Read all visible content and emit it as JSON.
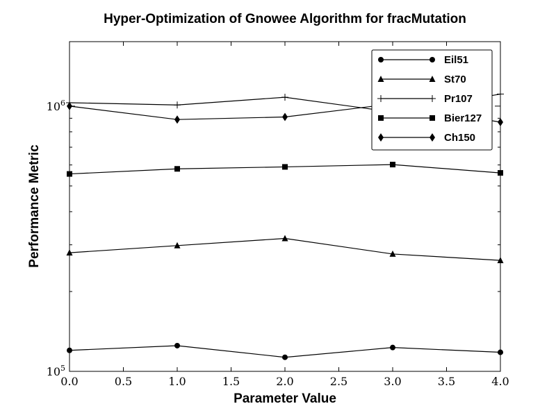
{
  "chart_data": {
    "type": "line",
    "title": "Hyper-Optimization of Gnowee Algorithm for fracMutation",
    "xlabel": "Parameter Value",
    "ylabel": "Performance Metric",
    "x": [
      0.0,
      1.0,
      2.0,
      3.0,
      4.0
    ],
    "xlim": [
      0.0,
      4.0
    ],
    "xticks": [
      0.0,
      0.5,
      1.0,
      1.5,
      2.0,
      2.5,
      3.0,
      3.5,
      4.0
    ],
    "xtick_labels": [
      "0.0",
      "0.5",
      "1.0",
      "1.5",
      "2.0",
      "2.5",
      "3.0",
      "3.5",
      "4.0"
    ],
    "yscale": "log",
    "ylim": [
      100000,
      1750000
    ],
    "yticks": [
      100000,
      1000000
    ],
    "ytick_labels": [
      {
        "base": "10",
        "exp": "5"
      },
      {
        "base": "10",
        "exp": "6"
      }
    ],
    "grid": false,
    "legend_position": "top-right",
    "series": [
      {
        "name": "Eil51",
        "marker": "circle",
        "values": [
          120000,
          125000,
          113000,
          123000,
          118000
        ]
      },
      {
        "name": "St70",
        "marker": "triangle",
        "values": [
          280000,
          298000,
          317000,
          277000,
          262000
        ]
      },
      {
        "name": "Pr107",
        "marker": "plus",
        "values": [
          1030000,
          1010000,
          1080000,
          950000,
          1110000
        ]
      },
      {
        "name": "Bier127",
        "marker": "square",
        "values": [
          555000,
          580000,
          590000,
          602000,
          560000
        ]
      },
      {
        "name": "Ch150",
        "marker": "diamond",
        "values": [
          1000000,
          890000,
          910000,
          1020000,
          870000
        ]
      }
    ]
  }
}
